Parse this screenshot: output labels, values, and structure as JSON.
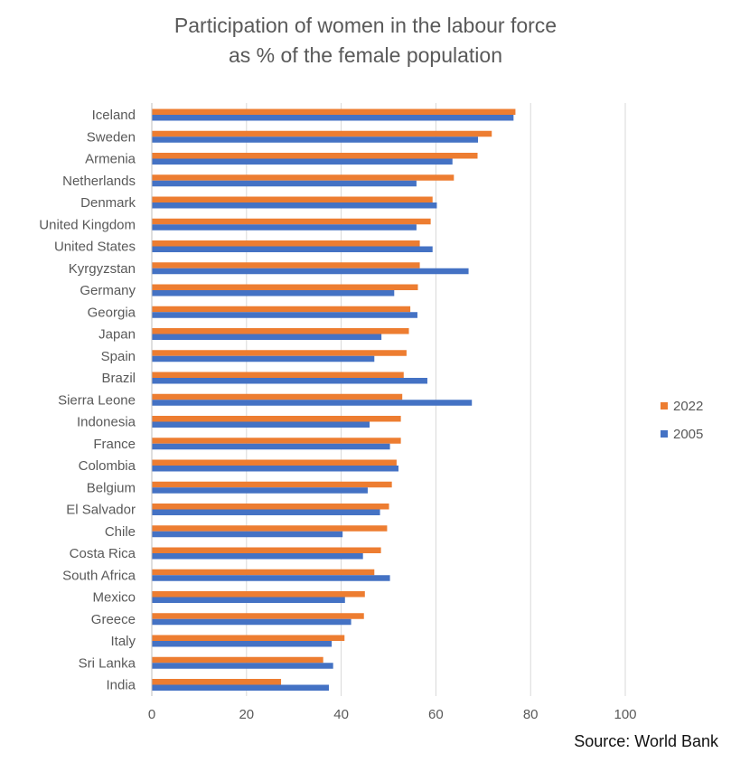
{
  "chart_data": {
    "type": "bar",
    "orientation": "horizontal",
    "title": "Participation of women in the labour force",
    "subtitle": "as % of the female population",
    "xlim": [
      0,
      100
    ],
    "x_ticks": [
      "0",
      "20",
      "40",
      "60",
      "80",
      "100"
    ],
    "grid": true,
    "legend_position": "right",
    "categories": [
      "Iceland",
      "Sweden",
      "Armenia",
      "Netherlands",
      "Denmark",
      "United Kingdom",
      "United States",
      "Kyrgyzstan",
      "Germany",
      "Georgia",
      "Japan",
      "Spain",
      "Brazil",
      "Sierra Leone",
      "Indonesia",
      "France",
      "Colombia",
      "Belgium",
      "El Salvador",
      "Chile",
      "Costa Rica",
      "South Africa",
      "Mexico",
      "Greece",
      "Italy",
      "Sri Lanka",
      "India"
    ],
    "series": [
      {
        "name": "2022",
        "color": "#ED7D31",
        "values": [
          76.8,
          71.8,
          68.8,
          63.8,
          59.3,
          58.9,
          56.6,
          56.6,
          56.2,
          54.6,
          54.3,
          53.8,
          53.2,
          52.9,
          52.6,
          52.6,
          51.7,
          50.7,
          50.1,
          49.7,
          48.4,
          47.0,
          45.0,
          44.8,
          40.7,
          36.2,
          27.3
        ]
      },
      {
        "name": "2005",
        "color": "#4472C4",
        "values": [
          76.4,
          68.9,
          63.5,
          55.9,
          60.2,
          55.9,
          59.3,
          66.9,
          51.2,
          56.1,
          48.5,
          47.0,
          58.2,
          67.6,
          46.0,
          50.3,
          52.1,
          45.6,
          48.2,
          40.3,
          44.6,
          50.3,
          40.8,
          42.1,
          38.0,
          38.3,
          37.4
        ]
      }
    ],
    "source": "Source: World Bank"
  }
}
